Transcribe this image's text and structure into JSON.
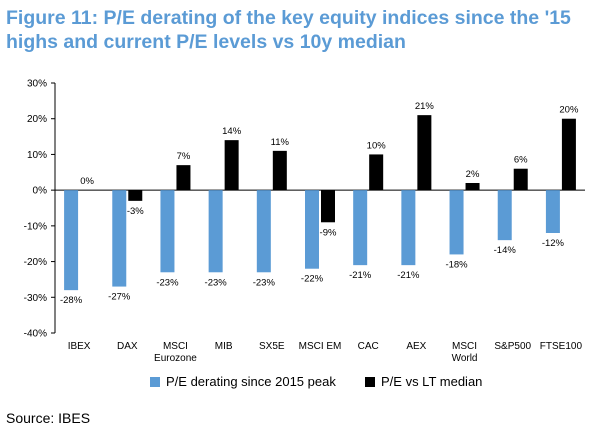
{
  "title": "Figure 11: P/E derating of the key equity indices since the '15 highs and current P/E levels vs 10y median",
  "source": "Source: IBES",
  "chart_data": {
    "type": "bar",
    "categories": [
      [
        "IBEX"
      ],
      [
        "DAX"
      ],
      [
        "MSCI",
        "Eurozone"
      ],
      [
        "MIB"
      ],
      [
        "SX5E"
      ],
      [
        "MSCI EM"
      ],
      [
        "CAC"
      ],
      [
        "AEX"
      ],
      [
        "MSCI",
        "World"
      ],
      [
        "S&P500"
      ],
      [
        "FTSE100"
      ]
    ],
    "series": [
      {
        "name": "P/E derating since 2015 peak",
        "color": "#5b9bd5",
        "values": [
          -28,
          -27,
          -23,
          -23,
          -23,
          -22,
          -21,
          -21,
          -18,
          -14,
          -12
        ],
        "labels": [
          "-28%",
          "-27%",
          "-23%",
          "-23%",
          "-23%",
          "-22%",
          "-21%",
          "-21%",
          "-18%",
          "-14%",
          "-12%"
        ]
      },
      {
        "name": "P/E vs LT median",
        "color": "#000000",
        "values": [
          0,
          -3,
          7,
          14,
          11,
          -9,
          10,
          21,
          2,
          6,
          20
        ],
        "labels": [
          "0%",
          "-3%",
          "7%",
          "14%",
          "11%",
          "-9%",
          "10%",
          "21%",
          "2%",
          "6%",
          "20%"
        ]
      }
    ],
    "ylim": [
      -40,
      30
    ],
    "yticks": [
      30,
      20,
      10,
      0,
      -10,
      -20,
      -30,
      -40
    ],
    "ytick_labels": [
      "30%",
      "20%",
      "10%",
      "0%",
      "-10%",
      "-20%",
      "-30%",
      "-40%"
    ],
    "xlabel": "",
    "ylabel": "",
    "legend_position": "bottom"
  }
}
